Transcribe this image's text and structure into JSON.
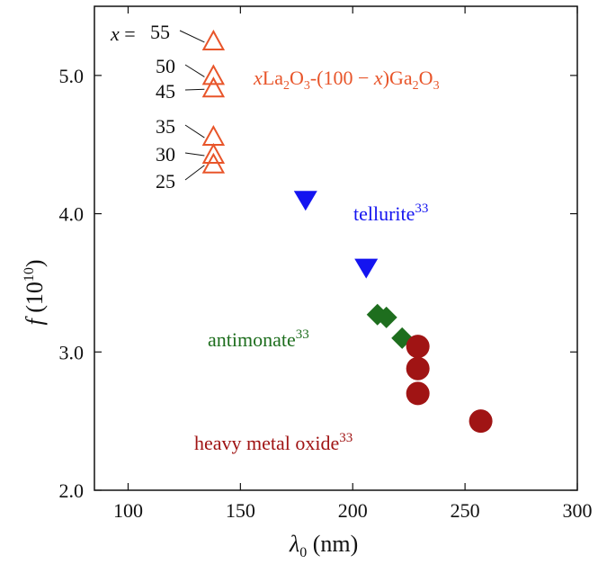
{
  "chart_data": {
    "type": "scatter",
    "title": "",
    "xlabel": "λ0 (nm)",
    "xlabel_main": "λ",
    "xlabel_sub": "0",
    "xlabel_unit": " (nm)",
    "ylabel": "f (10^10)",
    "ylabel_main": "f",
    "ylabel_unit_open": " (10",
    "ylabel_unit_exp": "10",
    "ylabel_unit_close": ")",
    "xlim": [
      85,
      300
    ],
    "ylim": [
      2.0,
      5.5
    ],
    "xticks": [
      100,
      150,
      200,
      250,
      300
    ],
    "xtick_labels": [
      "100",
      "150",
      "200",
      "250",
      "300"
    ],
    "yticks": [
      2.0,
      3.0,
      4.0,
      5.0
    ],
    "ytick_labels": [
      "2.0",
      "3.0",
      "4.0",
      "5.0"
    ],
    "series": [
      {
        "name": "xLa2O3-(100-x)Ga2O3",
        "marker": "triangle-up-open",
        "color": "#e8552a",
        "points": [
          {
            "x": 138,
            "y": 5.24,
            "x_label": "55"
          },
          {
            "x": 138,
            "y": 4.99,
            "x_label": "50"
          },
          {
            "x": 138,
            "y": 4.9,
            "x_label": "45"
          },
          {
            "x": 138,
            "y": 4.55,
            "x_label": "35"
          },
          {
            "x": 138,
            "y": 4.42,
            "x_label": "30"
          },
          {
            "x": 138,
            "y": 4.35,
            "x_label": "25"
          }
        ]
      },
      {
        "name": "tellurite33",
        "marker": "triangle-down",
        "color": "#1414f0",
        "points": [
          {
            "x": 179,
            "y": 4.1
          },
          {
            "x": 206,
            "y": 3.61
          }
        ]
      },
      {
        "name": "antimonate33",
        "marker": "diamond",
        "color": "#1e6e1e",
        "points": [
          {
            "x": 211,
            "y": 3.27
          },
          {
            "x": 215,
            "y": 3.25
          },
          {
            "x": 222,
            "y": 3.1
          }
        ]
      },
      {
        "name": "heavy metal oxide33",
        "marker": "circle",
        "color": "#a01414",
        "points": [
          {
            "x": 229,
            "y": 3.04
          },
          {
            "x": 229,
            "y": 2.88
          },
          {
            "x": 229,
            "y": 2.7
          },
          {
            "x": 257,
            "y": 2.5
          }
        ]
      }
    ],
    "annotations": {
      "x_prefix": "x",
      "x_equals": " = ",
      "la_label": {
        "x": "x",
        "a": "La",
        "s1": "2",
        "b": "O",
        "s2": "3",
        "c": "-(100 − ",
        "d": "x",
        "e": ")Ga",
        "s3": "2",
        "f": "O",
        "s4": "3"
      },
      "tellurite": {
        "text": "tellurite",
        "sup": "33"
      },
      "antimonate": {
        "text": "antimonate",
        "sup": "33"
      },
      "heavy": {
        "text": "heavy metal oxide",
        "sup": "33"
      }
    },
    "colors": {
      "triangle": "#e8552a",
      "tellurite": "#1414f0",
      "antimonate": "#1e6e1e",
      "heavy": "#a01414"
    }
  }
}
